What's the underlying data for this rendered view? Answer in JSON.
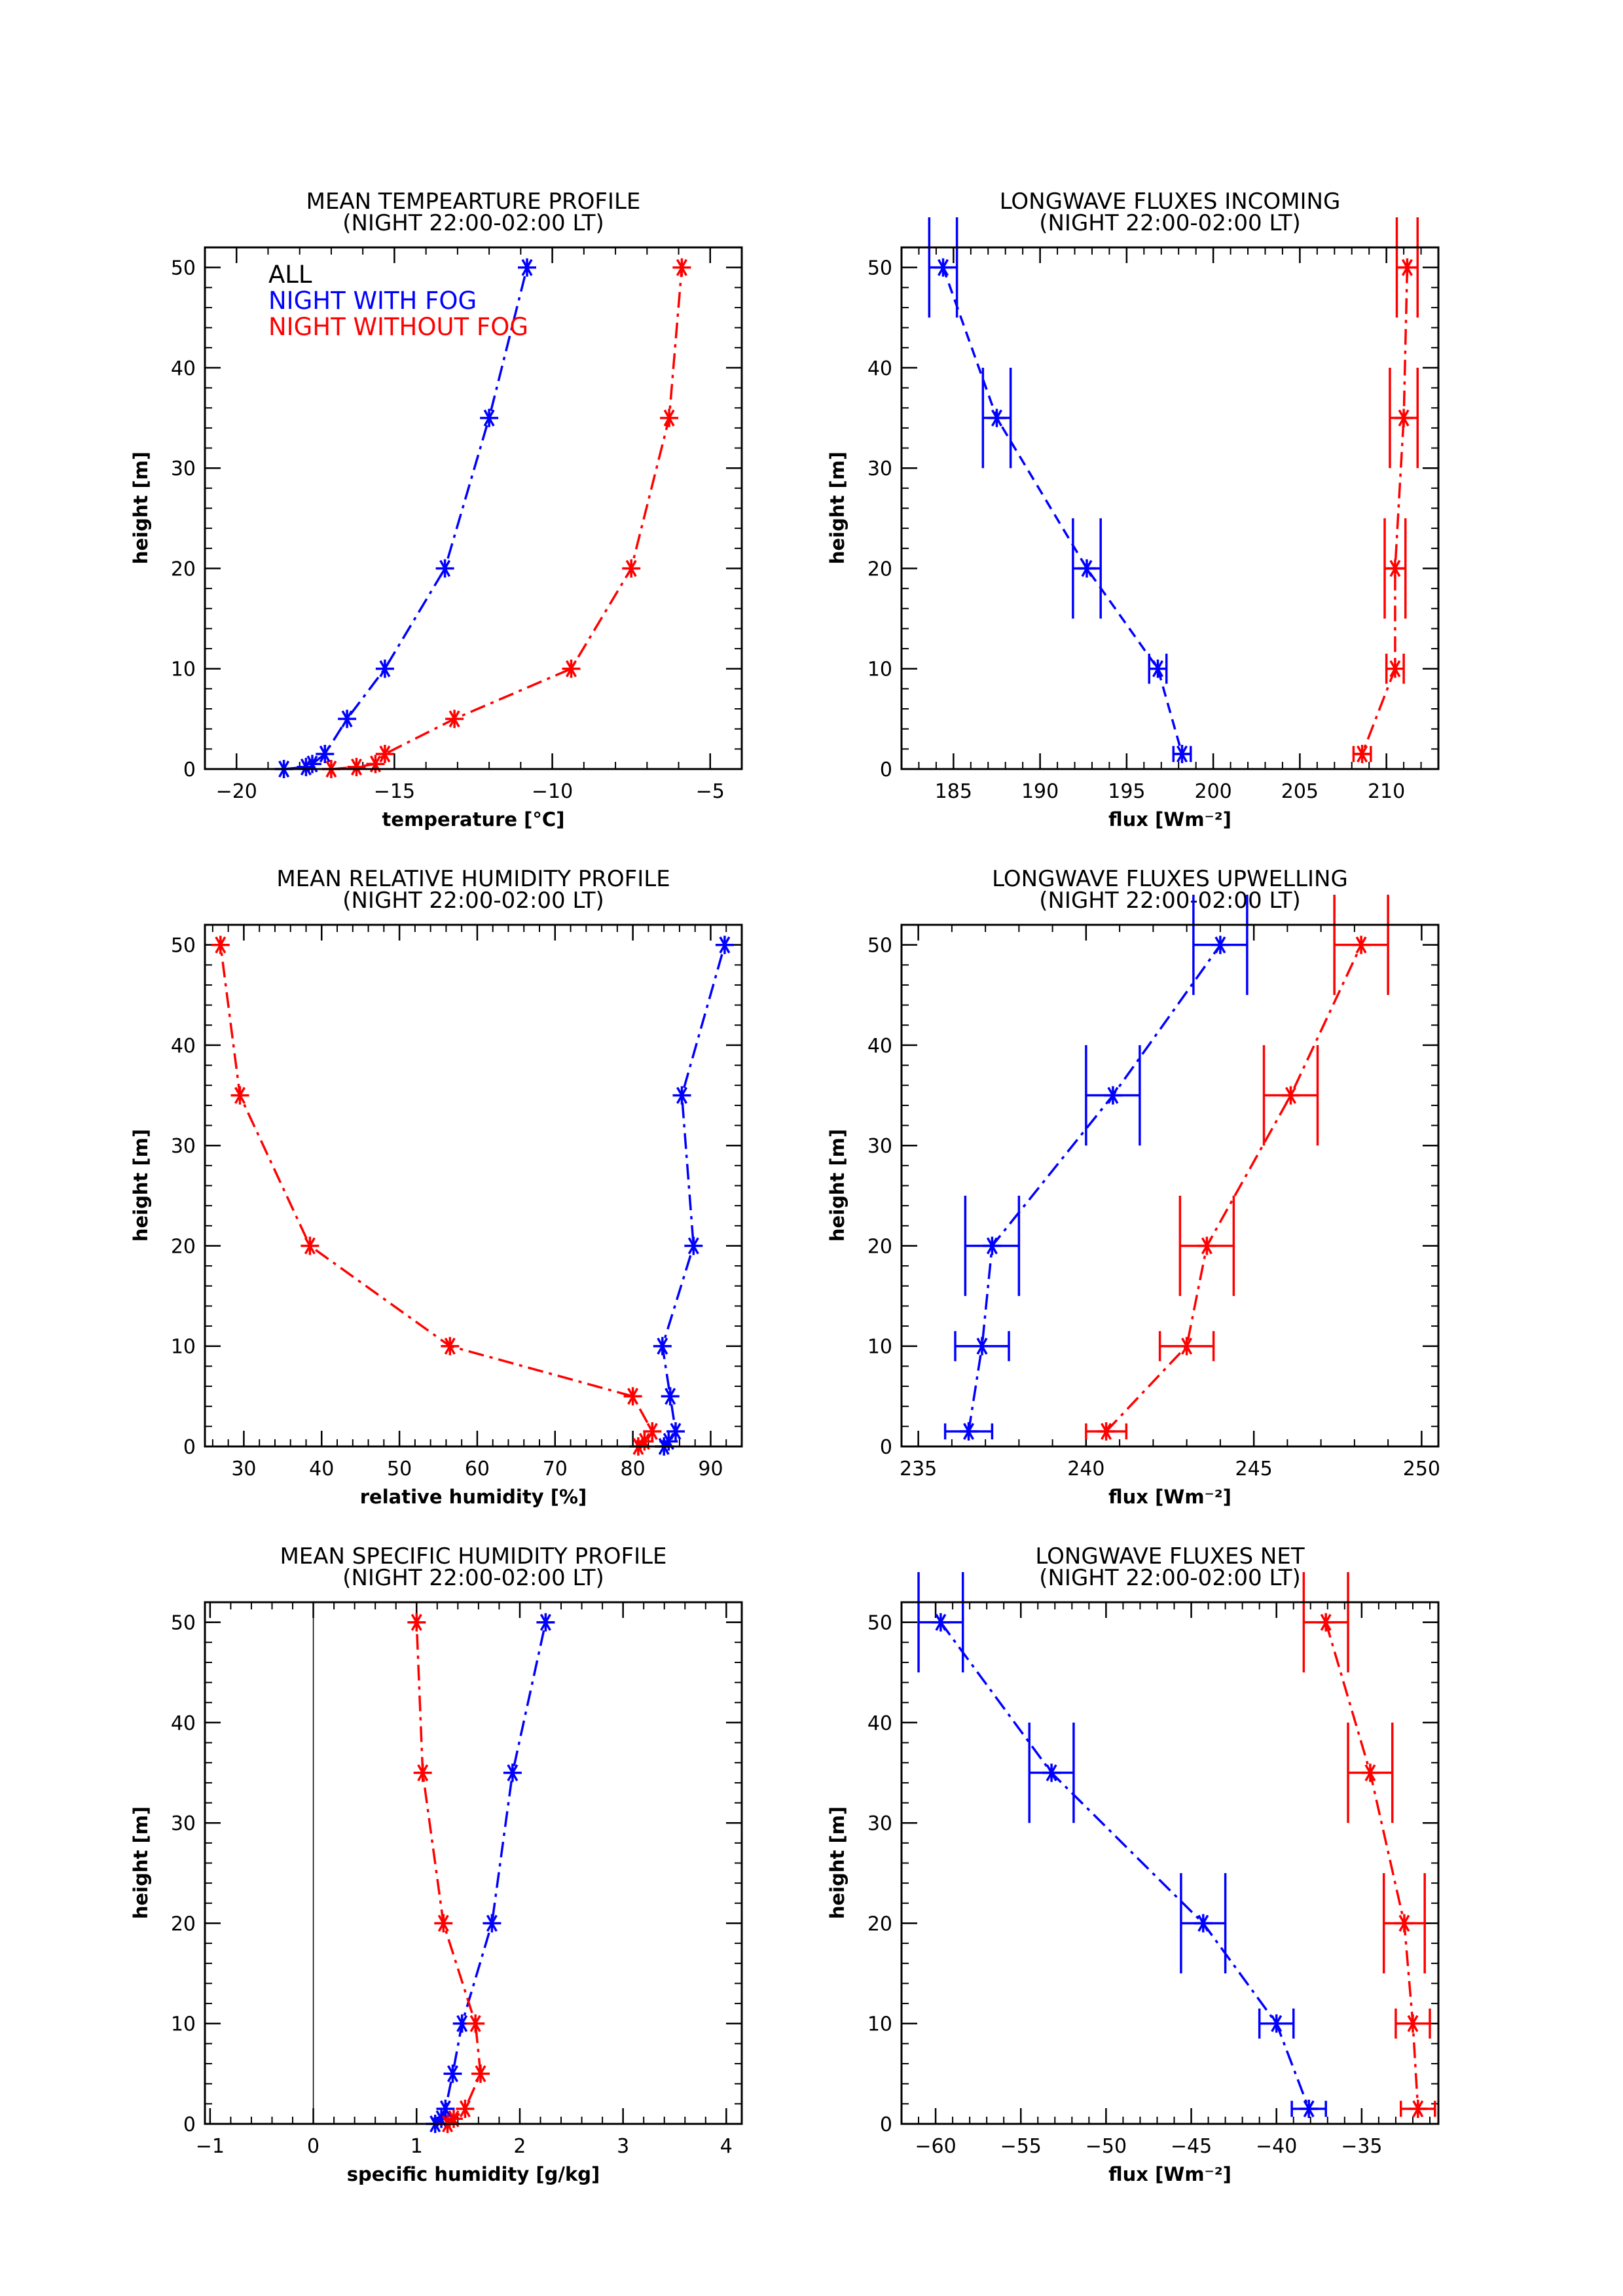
{
  "colors": {
    "all": "#000000",
    "fog": "#0000ff",
    "nofog": "#ff0000"
  },
  "legend": [
    {
      "label": "ALL",
      "color": "#000000"
    },
    {
      "label": "NIGHT WITH FOG",
      "color": "#0000ff"
    },
    {
      "label": "NIGHT WITHOUT FOG",
      "color": "#ff0000"
    }
  ],
  "chart_data": [
    {
      "type": "line",
      "title": "MEAN TEMPEARTURE PROFILE",
      "subtitle": "(NIGHT 22:00-02:00 LT)",
      "xlabel": "temperature [°C]",
      "ylabel": "height [m]",
      "xlim": [
        -21,
        -4
      ],
      "ylim": [
        0,
        52
      ],
      "xticks": [
        -20,
        -15,
        -10,
        -5
      ],
      "xminor": 1,
      "yticks": [
        0,
        10,
        20,
        30,
        40,
        50
      ],
      "yminor": 2,
      "legend_position": "top-left",
      "series": [
        {
          "name": "NIGHT WITH FOG",
          "color": "#0000ff",
          "style": "dashdot",
          "x": [
            -18.5,
            -17.8,
            -17.6,
            -17.2,
            -16.5,
            -15.3,
            -13.4,
            -12.0,
            -10.8
          ],
          "y": [
            0,
            0.2,
            0.5,
            1.5,
            5,
            10,
            20,
            35,
            50
          ]
        },
        {
          "name": "NIGHT WITHOUT FOG",
          "color": "#ff0000",
          "style": "dashdot",
          "x": [
            -17.0,
            -16.2,
            -15.6,
            -15.3,
            -13.1,
            -9.4,
            -7.5,
            -6.3,
            -5.9
          ],
          "y": [
            0,
            0.2,
            0.5,
            1.5,
            5,
            10,
            20,
            35,
            50
          ]
        }
      ]
    },
    {
      "type": "line",
      "title": "LONGWAVE FLUXES INCOMING",
      "subtitle": "(NIGHT 22:00-02:00 LT)",
      "xlabel": "flux [Wm⁻²]",
      "ylabel": "height [m]",
      "xlim": [
        182,
        213
      ],
      "ylim": [
        0,
        52
      ],
      "xticks": [
        185,
        190,
        195,
        200,
        205,
        210
      ],
      "xminor": 1,
      "yticks": [
        0,
        10,
        20,
        30,
        40,
        50
      ],
      "yminor": 2,
      "series": [
        {
          "color": "#0000ff",
          "style": "dashed",
          "x": [
            184.4,
            187.5,
            192.7,
            196.8,
            198.2
          ],
          "y": [
            50,
            35,
            20,
            10,
            1.5
          ],
          "xerr": [
            0.8,
            0.8,
            0.8,
            0.5,
            0.5
          ],
          "ycap": [
            5,
            5,
            5,
            1.5,
            0.8
          ]
        },
        {
          "color": "#ff0000",
          "style": "dashdot",
          "x": [
            211.2,
            211.0,
            210.5,
            210.5,
            208.6
          ],
          "y": [
            50,
            35,
            20,
            10,
            1.5
          ],
          "xerr": [
            0.6,
            0.8,
            0.6,
            0.5,
            0.5
          ],
          "ycap": [
            5,
            5,
            5,
            1.5,
            0.8
          ]
        }
      ]
    },
    {
      "type": "line",
      "title": "MEAN RELATIVE HUMIDITY PROFILE",
      "subtitle": "(NIGHT 22:00-02:00 LT)",
      "xlabel": "relative humidity [%]",
      "ylabel": "height [m]",
      "xlim": [
        25,
        94
      ],
      "ylim": [
        0,
        52
      ],
      "xticks": [
        30,
        40,
        50,
        60,
        70,
        80,
        90
      ],
      "xminor": 2,
      "yticks": [
        0,
        10,
        20,
        30,
        40,
        50
      ],
      "yminor": 2,
      "series": [
        {
          "color": "#0000ff",
          "style": "dashdot",
          "x": [
            84.0,
            84.6,
            85.5,
            84.8,
            83.8,
            87.8,
            86.3,
            91.8
          ],
          "y": [
            0,
            0.5,
            1.5,
            5,
            10,
            20,
            35,
            50
          ]
        },
        {
          "color": "#ff0000",
          "style": "dashdot",
          "x": [
            80.7,
            81.5,
            82.5,
            80.0,
            56.5,
            38.5,
            29.5,
            27.0
          ],
          "y": [
            0,
            0.5,
            1.5,
            5,
            10,
            20,
            35,
            50
          ]
        }
      ]
    },
    {
      "type": "line",
      "title": "LONGWAVE FLUXES UPWELLING",
      "subtitle": "(NIGHT 22:00-02:00 LT)",
      "xlabel": "flux [Wm⁻²]",
      "ylabel": "height [m]",
      "xlim": [
        234.5,
        250.5
      ],
      "ylim": [
        0,
        52
      ],
      "xticks": [
        235,
        240,
        245,
        250
      ],
      "xminor": 1,
      "yticks": [
        0,
        10,
        20,
        30,
        40,
        50
      ],
      "yminor": 2,
      "series": [
        {
          "color": "#0000ff",
          "style": "dashdot",
          "x": [
            236.5,
            236.9,
            237.2,
            240.8,
            244.0
          ],
          "y": [
            1.5,
            10,
            20,
            35,
            50
          ],
          "xerr": [
            0.7,
            0.8,
            0.8,
            0.8,
            0.8
          ],
          "ycap": [
            0.8,
            1.5,
            5,
            5,
            5
          ]
        },
        {
          "color": "#ff0000",
          "style": "dashdot",
          "x": [
            240.6,
            243.0,
            243.6,
            246.1,
            248.2
          ],
          "y": [
            1.5,
            10,
            20,
            35,
            50
          ],
          "xerr": [
            0.6,
            0.8,
            0.8,
            0.8,
            0.8
          ],
          "ycap": [
            0.8,
            1.5,
            5,
            5,
            5
          ]
        }
      ]
    },
    {
      "type": "line",
      "title": "MEAN SPECIFIC HUMIDITY PROFILE",
      "subtitle": "(NIGHT 22:00-02:00 LT)",
      "xlabel": "specific humidity [g/kg]",
      "ylabel": "height [m]",
      "xlim": [
        -1.05,
        4.15
      ],
      "ylim": [
        0,
        52
      ],
      "xticks": [
        -1,
        0,
        1,
        2,
        3,
        4
      ],
      "xminor": 0.2,
      "yticks": [
        0,
        10,
        20,
        30,
        40,
        50
      ],
      "yminor": 2,
      "zero_line_x": 0,
      "series": [
        {
          "color": "#0000ff",
          "style": "dashdot",
          "x": [
            1.18,
            1.24,
            1.28,
            1.35,
            1.44,
            1.73,
            1.93,
            2.25
          ],
          "y": [
            0,
            0.5,
            1.5,
            5,
            10,
            20,
            35,
            50
          ]
        },
        {
          "color": "#ff0000",
          "style": "dashdot",
          "x": [
            1.3,
            1.36,
            1.47,
            1.62,
            1.57,
            1.26,
            1.06,
            1.0
          ],
          "y": [
            0,
            0.5,
            1.5,
            5,
            10,
            20,
            35,
            50
          ]
        }
      ]
    },
    {
      "type": "line",
      "title": "LONGWAVE FLUXES NET",
      "subtitle": "(NIGHT 22:00-02:00 LT)",
      "xlabel": "flux [Wm⁻²]",
      "ylabel": "height [m]",
      "xlim": [
        -62,
        -30.5
      ],
      "ylim": [
        0,
        52
      ],
      "xticks": [
        -60,
        -55,
        -50,
        -45,
        -40,
        -35
      ],
      "xminor": 1,
      "yticks": [
        0,
        10,
        20,
        30,
        40,
        50
      ],
      "yminor": 2,
      "series": [
        {
          "color": "#0000ff",
          "style": "dashdot",
          "x": [
            -59.7,
            -53.2,
            -44.3,
            -40.0,
            -38.1
          ],
          "y": [
            50,
            35,
            20,
            10,
            1.5
          ],
          "xerr": [
            1.3,
            1.3,
            1.3,
            1.0,
            1.0
          ],
          "ycap": [
            5,
            5,
            5,
            1.5,
            0.8
          ]
        },
        {
          "color": "#ff0000",
          "style": "dashdot",
          "x": [
            -37.1,
            -34.5,
            -32.5,
            -32.0,
            -31.7
          ],
          "y": [
            50,
            35,
            20,
            10,
            1.5
          ],
          "xerr": [
            1.3,
            1.3,
            1.2,
            1.0,
            1.0
          ],
          "ycap": [
            5,
            5,
            5,
            1.5,
            0.8
          ]
        }
      ]
    }
  ]
}
